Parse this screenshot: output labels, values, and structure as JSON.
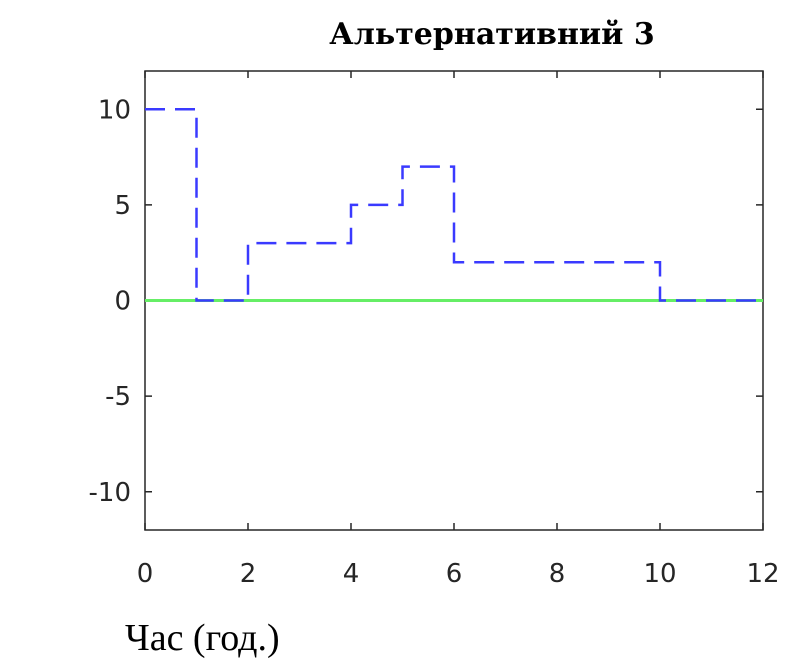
{
  "chart_data": {
    "type": "line",
    "title": "Альтернативний 3",
    "xlabel": "Час (год.)",
    "ylabel": "",
    "xlim": [
      0,
      12
    ],
    "ylim": [
      -12,
      12
    ],
    "xticks": [
      0,
      2,
      4,
      6,
      8,
      10,
      12
    ],
    "yticks": [
      10,
      5,
      0,
      -5,
      -10
    ],
    "grid": false,
    "legend": "none",
    "series": [
      {
        "style": "dashed-step",
        "color": "#3a3aff",
        "x": [
          0,
          1,
          1,
          2,
          2,
          4,
          4,
          5,
          5,
          6,
          6,
          10,
          10,
          12
        ],
        "y": [
          10,
          10,
          0,
          0,
          3,
          3,
          5,
          5,
          7,
          7,
          2,
          2,
          0,
          0
        ]
      },
      {
        "style": "solid",
        "color": "#66ee66",
        "x": [
          0,
          12
        ],
        "y": [
          0,
          0
        ]
      }
    ]
  }
}
